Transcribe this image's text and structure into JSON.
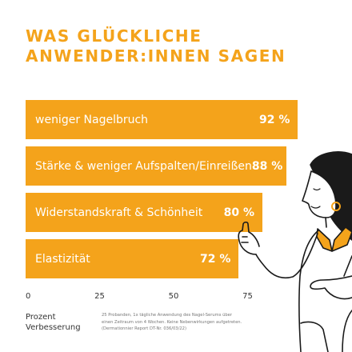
{
  "headline": {
    "line1": "WAS GLÜCKLICHE",
    "line2": "ANWENDER:INNEN SAGEN"
  },
  "colors": {
    "accent": "#f4a31b",
    "bar_text": "#ffffff"
  },
  "axis_label": {
    "line1": "Prozent",
    "line2": "Verbesserung"
  },
  "footnote": {
    "line1": "25 Probanden, 1x tägliche Anwendung des Nagel-Serums über",
    "line2": "einen Zeitraum von 4 Wochen. Keine Nebenwirkungen aufgetreten.",
    "line3": "(Dermationnier Report DT-Nr. 036/03/22)"
  },
  "chart_data": {
    "type": "bar",
    "orientation": "horizontal",
    "categories": [
      "weniger Nagelbruch",
      "Stärke & weniger Aufspalten/Einreißen",
      "Widerstandskraft & Schönheit",
      "Elastizität"
    ],
    "values": [
      92,
      88,
      80,
      72
    ],
    "value_labels": [
      "92 %",
      "88 %",
      "80 %",
      "72 %"
    ],
    "xticks": [
      "0",
      "25",
      "50",
      "75"
    ],
    "xlim": [
      0,
      100
    ],
    "grid": false
  }
}
